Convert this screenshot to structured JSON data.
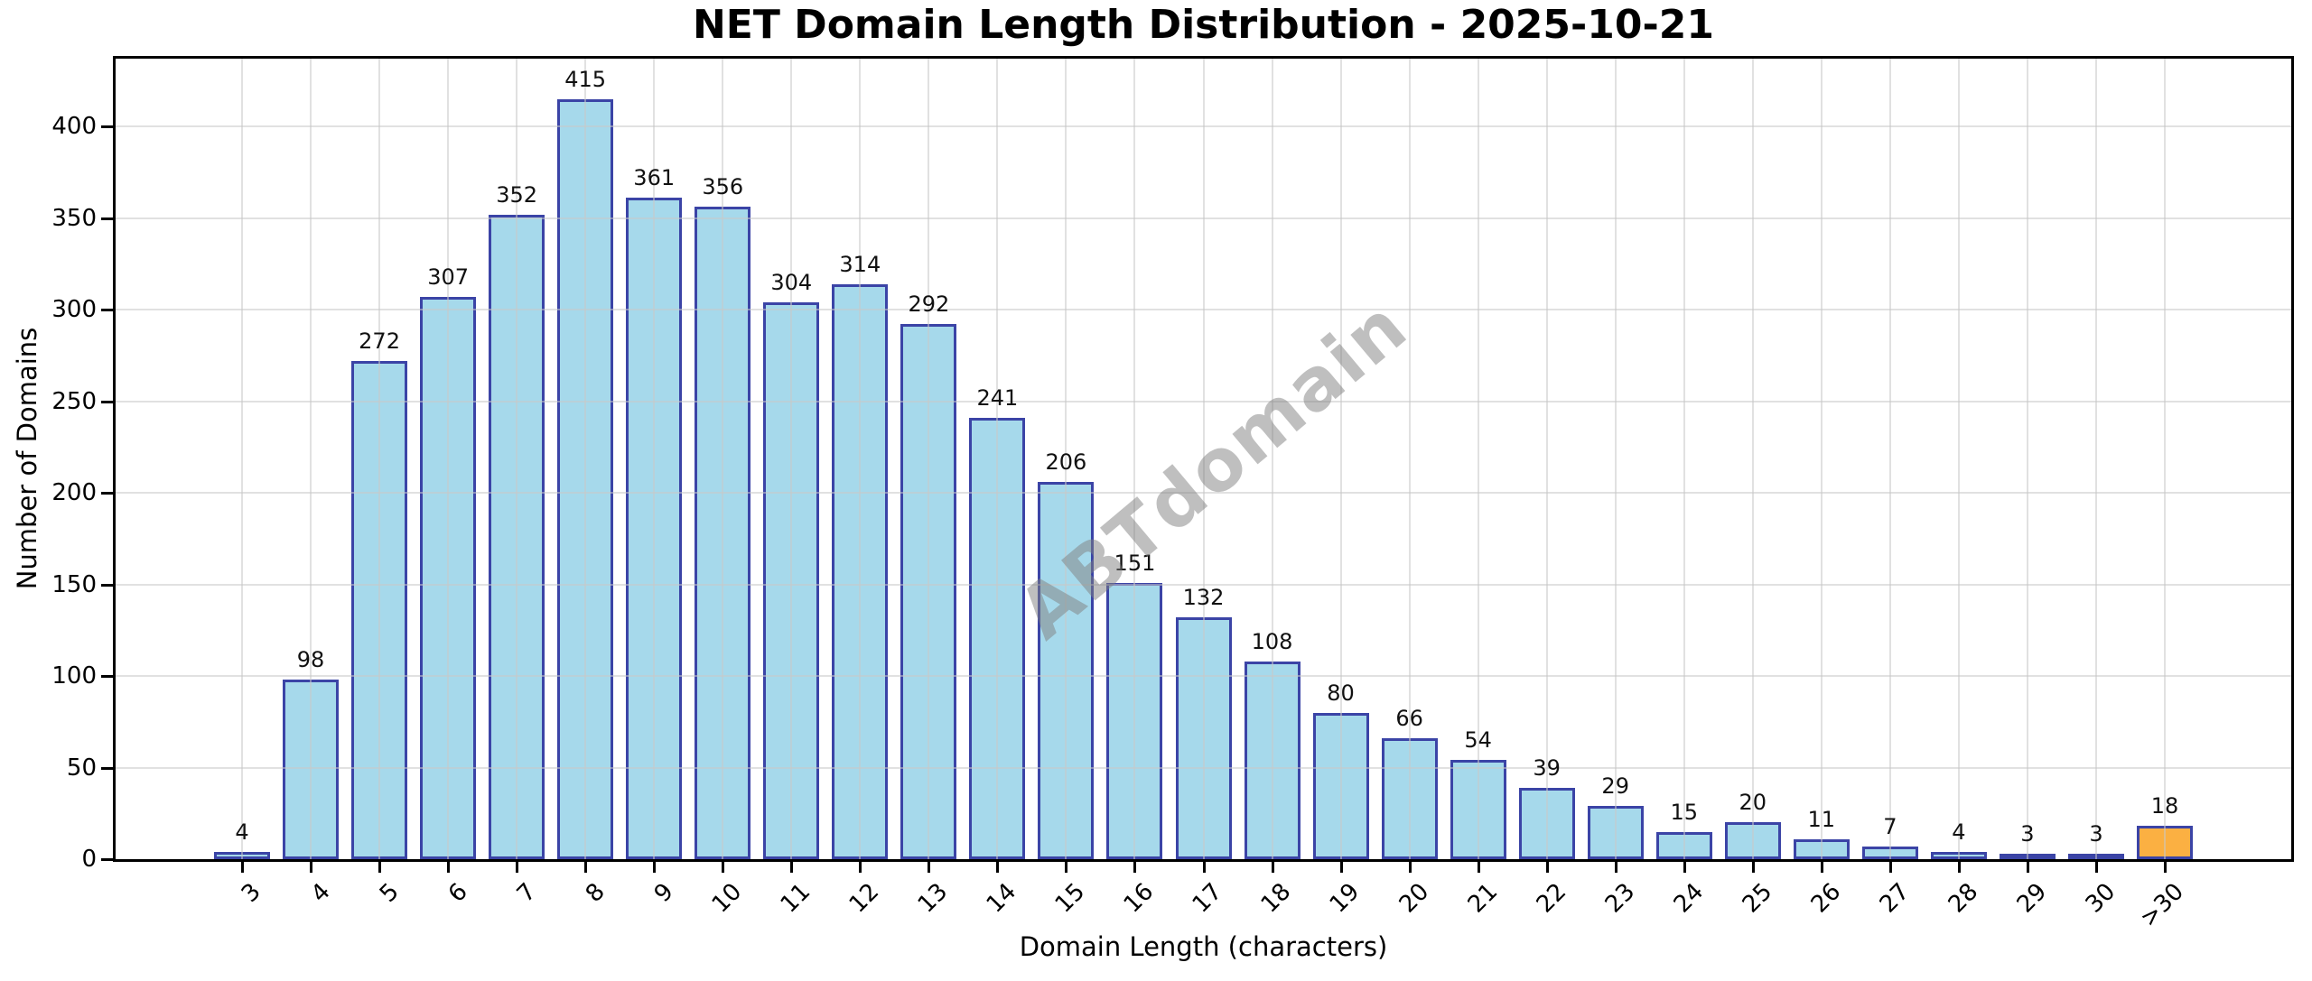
{
  "watermark": {
    "text": "ABTdomain",
    "color": "#808080"
  },
  "colors": {
    "bar_fill": "#A6D9EB",
    "bar_edge": "#3B44A6",
    "highlight_fill": "#FBB042",
    "grid": "#c8c8c8",
    "spine": "#000000"
  },
  "chart_data": {
    "type": "bar",
    "title": "NET Domain Length Distribution - 2025-10-21",
    "xlabel": "Domain Length (characters)",
    "ylabel": "Number of Domains",
    "categories": [
      "3",
      "4",
      "5",
      "6",
      "7",
      "8",
      "9",
      "10",
      "11",
      "12",
      "13",
      "14",
      "15",
      "16",
      "17",
      "18",
      "19",
      "20",
      "21",
      "22",
      "23",
      "24",
      "25",
      "26",
      "27",
      "28",
      "29",
      "30",
      ">30"
    ],
    "values": [
      4,
      98,
      272,
      307,
      352,
      415,
      361,
      356,
      304,
      314,
      292,
      241,
      206,
      151,
      132,
      108,
      80,
      66,
      54,
      39,
      29,
      15,
      20,
      11,
      7,
      4,
      3,
      3,
      18
    ],
    "yticks": [
      0,
      50,
      100,
      150,
      200,
      250,
      300,
      350,
      400
    ],
    "ylim": [
      0,
      437
    ],
    "grid": true,
    "legend": "none",
    "bar_labels_shown": true,
    "highlight_index": 28
  }
}
